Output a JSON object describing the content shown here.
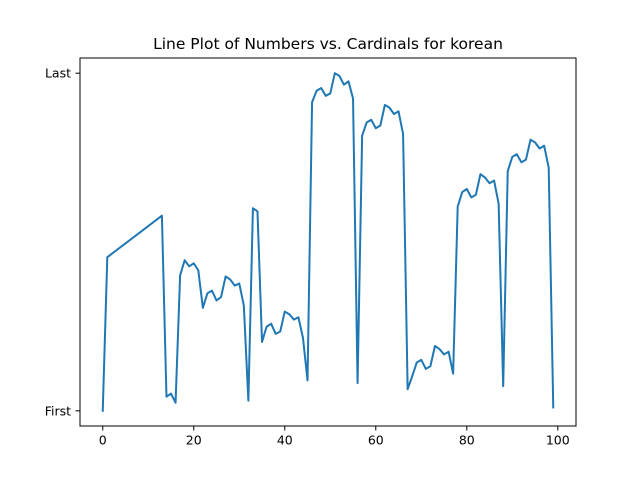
{
  "chart_data": {
    "type": "line",
    "title": "Line Plot of Numbers vs. Cardinals for korean",
    "xlabel": "",
    "ylabel": "",
    "xlim": [
      -5,
      104
    ],
    "ylim": [
      -0.045,
      1.045
    ],
    "x_ticks": [
      0,
      20,
      40,
      60,
      80,
      100
    ],
    "x_tick_labels": [
      "0",
      "20",
      "40",
      "60",
      "80",
      "100"
    ],
    "y_ticks": [
      0,
      1
    ],
    "y_tick_labels": [
      "First",
      "Last"
    ],
    "grid": false,
    "legend": "none",
    "series": [
      {
        "color": "#1f77b4",
        "x": [
          0,
          1,
          13,
          14,
          15,
          16,
          17,
          18,
          19,
          20,
          21,
          22,
          23,
          24,
          25,
          26,
          27,
          28,
          29,
          30,
          31,
          32,
          33,
          34,
          35,
          36,
          37,
          38,
          39,
          40,
          41,
          42,
          43,
          44,
          45,
          46,
          47,
          48,
          49,
          50,
          51,
          52,
          53,
          54,
          55,
          56,
          57,
          58,
          59,
          60,
          61,
          62,
          63,
          64,
          65,
          66,
          67,
          68,
          69,
          70,
          71,
          72,
          73,
          74,
          75,
          76,
          77,
          78,
          79,
          80,
          81,
          82,
          83,
          84,
          85,
          86,
          87,
          88,
          89,
          90,
          91,
          92,
          93,
          94,
          95,
          96,
          97,
          98,
          99
        ],
        "y": [
          0.0,
          0.455,
          0.578,
          0.042,
          0.051,
          0.024,
          0.401,
          0.446,
          0.428,
          0.437,
          0.416,
          0.305,
          0.348,
          0.356,
          0.327,
          0.337,
          0.398,
          0.389,
          0.371,
          0.377,
          0.312,
          0.03,
          0.6,
          0.591,
          0.204,
          0.249,
          0.258,
          0.228,
          0.235,
          0.294,
          0.286,
          0.27,
          0.277,
          0.216,
          0.09,
          0.914,
          0.948,
          0.956,
          0.933,
          0.94,
          1.0,
          0.992,
          0.966,
          0.976,
          0.925,
          0.082,
          0.815,
          0.854,
          0.862,
          0.837,
          0.845,
          0.906,
          0.898,
          0.879,
          0.887,
          0.82,
          0.064,
          0.102,
          0.143,
          0.151,
          0.124,
          0.132,
          0.192,
          0.183,
          0.167,
          0.175,
          0.11,
          0.605,
          0.648,
          0.657,
          0.632,
          0.64,
          0.701,
          0.691,
          0.674,
          0.682,
          0.613,
          0.073,
          0.71,
          0.752,
          0.76,
          0.736,
          0.744,
          0.803,
          0.795,
          0.777,
          0.785,
          0.72,
          0.01
        ]
      }
    ]
  }
}
